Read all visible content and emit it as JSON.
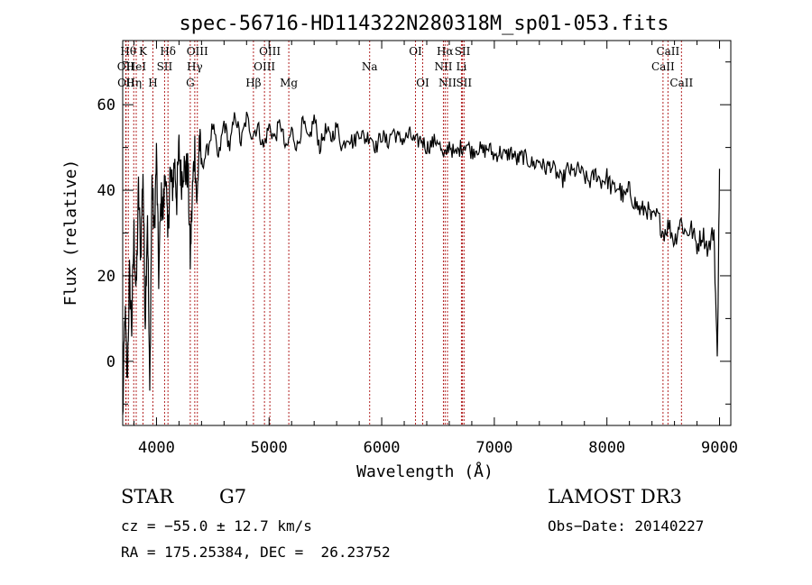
{
  "chart_data": {
    "type": "line",
    "title": "spec-56716-HD114322N280318M_sp01-053.fits",
    "xlabel": "Wavelength (Å)",
    "ylabel": "Flux (relative)",
    "xlim": [
      3700,
      9100
    ],
    "ylim": [
      -15,
      75
    ],
    "x_ticks": [
      4000,
      5000,
      6000,
      7000,
      8000,
      9000
    ],
    "x_tick_labels": [
      "4000",
      "5000",
      "6000",
      "7000",
      "8000",
      "9000"
    ],
    "y_ticks": [
      0,
      20,
      40,
      60
    ],
    "y_tick_labels": [
      "0",
      "20",
      "40",
      "60"
    ],
    "grid": false,
    "legend": "none",
    "line_color": "#000000",
    "marker_line_color": "#b22222",
    "series": [
      {
        "name": "flux",
        "x": [
          3700,
          3720,
          3740,
          3760,
          3780,
          3800,
          3820,
          3840,
          3860,
          3880,
          3900,
          3920,
          3940,
          3960,
          3980,
          4000,
          4020,
          4040,
          4060,
          4080,
          4100,
          4120,
          4140,
          4160,
          4180,
          4200,
          4220,
          4240,
          4260,
          4280,
          4300,
          4320,
          4340,
          4360,
          4380,
          4400,
          4450,
          4500,
          4550,
          4600,
          4650,
          4700,
          4750,
          4800,
          4850,
          4900,
          4950,
          5000,
          5050,
          5100,
          5150,
          5200,
          5250,
          5300,
          5350,
          5400,
          5450,
          5500,
          5550,
          5600,
          5650,
          5700,
          5750,
          5800,
          5850,
          5900,
          5950,
          6000,
          6050,
          6100,
          6150,
          6200,
          6250,
          6300,
          6350,
          6400,
          6450,
          6500,
          6550,
          6600,
          6650,
          6700,
          6750,
          6800,
          6850,
          6900,
          6950,
          7000,
          7050,
          7100,
          7150,
          7200,
          7250,
          7300,
          7350,
          7400,
          7450,
          7500,
          7550,
          7600,
          7650,
          7700,
          7750,
          7800,
          7850,
          7900,
          7950,
          8000,
          8050,
          8100,
          8150,
          8200,
          8250,
          8300,
          8350,
          8400,
          8450,
          8500,
          8550,
          8600,
          8650,
          8700,
          8750,
          8800,
          8850,
          8900,
          8950,
          8980,
          9000
        ],
        "values": [
          -14,
          12,
          -5,
          20,
          8,
          30,
          15,
          40,
          25,
          45,
          10,
          35,
          -8,
          42,
          30,
          48,
          20,
          38,
          35,
          46,
          28,
          44,
          40,
          47,
          38,
          50,
          42,
          46,
          44,
          45,
          24,
          40,
          50,
          36,
          52,
          46,
          49,
          55,
          47,
          56,
          50,
          58,
          51,
          57,
          53,
          55,
          50,
          55,
          52,
          56,
          49,
          54,
          50,
          56,
          51,
          57,
          50,
          54,
          52,
          55,
          50,
          53,
          51,
          54,
          52,
          53,
          50,
          53,
          51,
          54,
          52,
          52,
          53,
          51,
          52,
          50,
          51,
          52,
          47,
          51,
          48,
          50,
          51,
          49,
          50,
          49,
          50,
          48,
          49,
          48,
          49,
          47,
          48,
          47,
          46,
          47,
          45,
          46,
          44,
          42,
          45,
          44,
          45,
          43,
          42,
          44,
          42,
          43,
          40,
          41,
          38,
          40,
          37,
          35,
          36,
          33,
          34,
          30,
          32,
          28,
          33,
          30,
          31,
          27,
          30,
          26,
          31,
          0,
          45
        ]
      }
    ],
    "line_markers": [
      {
        "wl": 3750,
        "label": "Hθ",
        "row": 0
      },
      {
        "wl": 3727,
        "label": "OII",
        "row": 1
      },
      {
        "wl": 3730,
        "label": "OII",
        "row": 2
      },
      {
        "wl": 3798,
        "label": "Hη",
        "row": 2
      },
      {
        "wl": 3820,
        "label": "HeI",
        "row": 1
      },
      {
        "wl": 3880,
        "label": "K",
        "row": 0
      },
      {
        "wl": 3968,
        "label": "H",
        "row": 2
      },
      {
        "wl": 4072,
        "label": "SII",
        "row": 1
      },
      {
        "wl": 4102,
        "label": "Hδ",
        "row": 0
      },
      {
        "wl": 4300,
        "label": "G",
        "row": 2
      },
      {
        "wl": 4340,
        "label": "Hγ",
        "row": 1
      },
      {
        "wl": 4363,
        "label": "OIII",
        "row": 0
      },
      {
        "wl": 4861,
        "label": "Hβ",
        "row": 2
      },
      {
        "wl": 4959,
        "label": "OIII",
        "row": 1
      },
      {
        "wl": 5007,
        "label": "OIII",
        "row": 0
      },
      {
        "wl": 5175,
        "label": "Mg",
        "row": 2
      },
      {
        "wl": 5893,
        "label": "Na",
        "row": 1
      },
      {
        "wl": 6300,
        "label": "OI",
        "row": 0
      },
      {
        "wl": 6364,
        "label": "OI",
        "row": 2
      },
      {
        "wl": 6548,
        "label": "NII",
        "row": 1
      },
      {
        "wl": 6563,
        "label": "Hα",
        "row": 0
      },
      {
        "wl": 6584,
        "label": "NII",
        "row": 2
      },
      {
        "wl": 6708,
        "label": "Li",
        "row": 1
      },
      {
        "wl": 6717,
        "label": "SII",
        "row": 0
      },
      {
        "wl": 6731,
        "label": "SII",
        "row": 2
      },
      {
        "wl": 8498,
        "label": "CaII",
        "row": 1
      },
      {
        "wl": 8542,
        "label": "CaII",
        "row": 0
      },
      {
        "wl": 8662,
        "label": "CaII",
        "row": 2
      }
    ]
  },
  "info": {
    "object_class": "STAR",
    "subclass": "G7",
    "survey": "LAMOST DR3",
    "cz_line": "cz = −55.0 ± 12.7 km/s",
    "obs_date": "Obs−Date: 20140227",
    "radec": "RA = 175.25384, DEC =  26.23752"
  }
}
